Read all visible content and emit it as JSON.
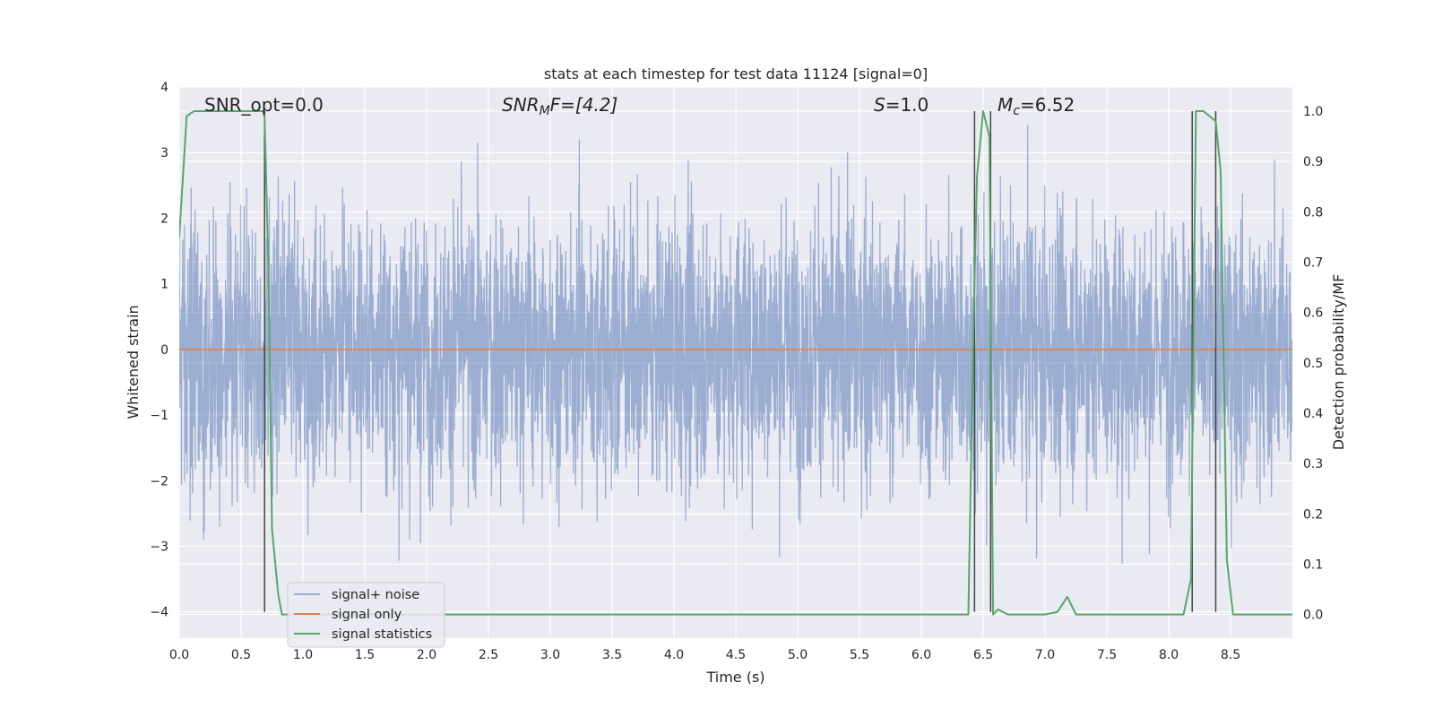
{
  "chart_data": {
    "type": "line",
    "title": "stats at each timestep for test data 11124 [signal=0]",
    "xlabel": "Time (s)",
    "ylabel": "Whitened strain",
    "ylabel_right": "Detection probability/MF",
    "xlim": [
      0.0,
      9.0
    ],
    "ylim": [
      -4.4,
      4.0
    ],
    "ylim_right": [
      -0.047,
      1.048
    ],
    "x_ticks": [
      "0.0",
      "0.5",
      "1.0",
      "1.5",
      "2.0",
      "2.5",
      "3.0",
      "3.5",
      "4.0",
      "4.5",
      "5.0",
      "5.5",
      "6.0",
      "6.5",
      "7.0",
      "7.5",
      "8.0",
      "8.5"
    ],
    "y_ticks": [
      "4",
      "3",
      "2",
      "1",
      "0",
      "−1",
      "−2",
      "−3",
      "−4"
    ],
    "y_right_ticks": [
      "1.0",
      "0.9",
      "0.8",
      "0.7",
      "0.6",
      "0.5",
      "0.4",
      "0.3",
      "0.2",
      "0.1",
      "0.0"
    ],
    "grid": true,
    "legend_position": "lower-left",
    "annotations": {
      "snr_opt": "SNR_opt=0.0",
      "snr_mf_sym": "SNR",
      "snr_mf_sub": "M",
      "snr_mf_rest": "F=[4.2]",
      "s_sym": "S",
      "s_rest": "=1.0",
      "mc_sym": "M",
      "mc_sub": "c",
      "mc_rest": "=6.52"
    },
    "series": [
      {
        "name": "signal+ noise",
        "color": "#4c72b0",
        "description_noise": {
          "typical_range": [
            -1.9,
            1.9
          ],
          "extremes": [
            -3.6,
            3.6
          ]
        }
      },
      {
        "name": "signal only",
        "color": "#dd8452",
        "x": [
          0.0,
          9.0
        ],
        "y": [
          0.0,
          0.0
        ]
      },
      {
        "name": "signal statistics",
        "color": "#55a868",
        "x": [
          0.0,
          0.06,
          0.12,
          0.3,
          0.5,
          0.68,
          0.69,
          0.72,
          0.75,
          0.8,
          0.83,
          1.0,
          2.0,
          3.0,
          4.0,
          5.0,
          6.0,
          6.38,
          6.42,
          6.45,
          6.5,
          6.55,
          6.58,
          6.62,
          6.7,
          6.8,
          7.0,
          7.1,
          7.18,
          7.25,
          7.4,
          8.0,
          8.12,
          8.18,
          8.2,
          8.22,
          8.28,
          8.33,
          8.38,
          8.42,
          8.47,
          8.52,
          8.6,
          8.8,
          9.0
        ],
        "y": [
          0.75,
          0.99,
          1.0,
          1.0,
          1.0,
          1.0,
          0.99,
          0.7,
          0.17,
          0.04,
          0.0,
          0.0,
          0.0,
          0.0,
          0.0,
          0.0,
          0.0,
          0.0,
          0.55,
          0.87,
          1.0,
          0.95,
          0.0,
          0.01,
          0.0,
          0.0,
          0.0,
          0.005,
          0.035,
          0.0,
          0.0,
          0.0,
          0.0,
          0.07,
          0.55,
          1.0,
          1.0,
          0.99,
          0.98,
          0.88,
          0.11,
          0.0,
          0.0,
          0.0,
          0.0
        ]
      }
    ],
    "vlines": {
      "color": "#444444",
      "x": [
        0.69,
        6.43,
        6.56,
        8.19,
        8.38
      ],
      "y_bottom_left": -4.0,
      "y_top_right": 1.0
    }
  }
}
